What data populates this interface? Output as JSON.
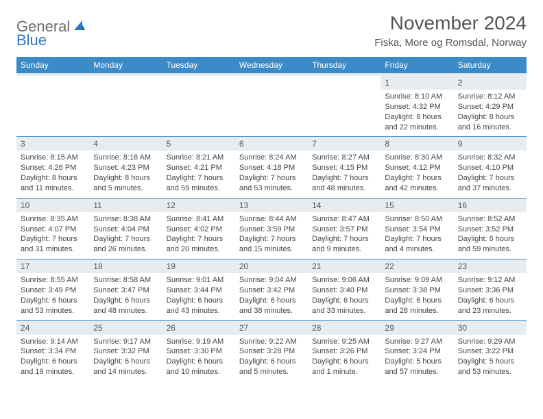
{
  "brand": {
    "general": "General",
    "blue": "Blue"
  },
  "title": "November 2024",
  "location": "Fiska, More og Romsdal, Norway",
  "colors": {
    "header_bg": "#3b8bc9",
    "header_text": "#ffffff",
    "daynum_bg": "#e9ecef",
    "border": "#3b8bc9",
    "logo_gray": "#6b6b6b",
    "logo_blue": "#2b79c2"
  },
  "weekdays": [
    "Sunday",
    "Monday",
    "Tuesday",
    "Wednesday",
    "Thursday",
    "Friday",
    "Saturday"
  ],
  "weeks": [
    [
      null,
      null,
      null,
      null,
      null,
      {
        "n": "1",
        "sr": "8:10 AM",
        "ss": "4:32 PM",
        "dl": "8 hours and 22 minutes."
      },
      {
        "n": "2",
        "sr": "8:12 AM",
        "ss": "4:29 PM",
        "dl": "8 hours and 16 minutes."
      }
    ],
    [
      {
        "n": "3",
        "sr": "8:15 AM",
        "ss": "4:26 PM",
        "dl": "8 hours and 11 minutes."
      },
      {
        "n": "4",
        "sr": "8:18 AM",
        "ss": "4:23 PM",
        "dl": "8 hours and 5 minutes."
      },
      {
        "n": "5",
        "sr": "8:21 AM",
        "ss": "4:21 PM",
        "dl": "7 hours and 59 minutes."
      },
      {
        "n": "6",
        "sr": "8:24 AM",
        "ss": "4:18 PM",
        "dl": "7 hours and 53 minutes."
      },
      {
        "n": "7",
        "sr": "8:27 AM",
        "ss": "4:15 PM",
        "dl": "7 hours and 48 minutes."
      },
      {
        "n": "8",
        "sr": "8:30 AM",
        "ss": "4:12 PM",
        "dl": "7 hours and 42 minutes."
      },
      {
        "n": "9",
        "sr": "8:32 AM",
        "ss": "4:10 PM",
        "dl": "7 hours and 37 minutes."
      }
    ],
    [
      {
        "n": "10",
        "sr": "8:35 AM",
        "ss": "4:07 PM",
        "dl": "7 hours and 31 minutes."
      },
      {
        "n": "11",
        "sr": "8:38 AM",
        "ss": "4:04 PM",
        "dl": "7 hours and 26 minutes."
      },
      {
        "n": "12",
        "sr": "8:41 AM",
        "ss": "4:02 PM",
        "dl": "7 hours and 20 minutes."
      },
      {
        "n": "13",
        "sr": "8:44 AM",
        "ss": "3:59 PM",
        "dl": "7 hours and 15 minutes."
      },
      {
        "n": "14",
        "sr": "8:47 AM",
        "ss": "3:57 PM",
        "dl": "7 hours and 9 minutes."
      },
      {
        "n": "15",
        "sr": "8:50 AM",
        "ss": "3:54 PM",
        "dl": "7 hours and 4 minutes."
      },
      {
        "n": "16",
        "sr": "8:52 AM",
        "ss": "3:52 PM",
        "dl": "6 hours and 59 minutes."
      }
    ],
    [
      {
        "n": "17",
        "sr": "8:55 AM",
        "ss": "3:49 PM",
        "dl": "6 hours and 53 minutes."
      },
      {
        "n": "18",
        "sr": "8:58 AM",
        "ss": "3:47 PM",
        "dl": "6 hours and 48 minutes."
      },
      {
        "n": "19",
        "sr": "9:01 AM",
        "ss": "3:44 PM",
        "dl": "6 hours and 43 minutes."
      },
      {
        "n": "20",
        "sr": "9:04 AM",
        "ss": "3:42 PM",
        "dl": "6 hours and 38 minutes."
      },
      {
        "n": "21",
        "sr": "9:06 AM",
        "ss": "3:40 PM",
        "dl": "6 hours and 33 minutes."
      },
      {
        "n": "22",
        "sr": "9:09 AM",
        "ss": "3:38 PM",
        "dl": "6 hours and 28 minutes."
      },
      {
        "n": "23",
        "sr": "9:12 AM",
        "ss": "3:36 PM",
        "dl": "6 hours and 23 minutes."
      }
    ],
    [
      {
        "n": "24",
        "sr": "9:14 AM",
        "ss": "3:34 PM",
        "dl": "6 hours and 19 minutes."
      },
      {
        "n": "25",
        "sr": "9:17 AM",
        "ss": "3:32 PM",
        "dl": "6 hours and 14 minutes."
      },
      {
        "n": "26",
        "sr": "9:19 AM",
        "ss": "3:30 PM",
        "dl": "6 hours and 10 minutes."
      },
      {
        "n": "27",
        "sr": "9:22 AM",
        "ss": "3:28 PM",
        "dl": "6 hours and 5 minutes."
      },
      {
        "n": "28",
        "sr": "9:25 AM",
        "ss": "3:26 PM",
        "dl": "6 hours and 1 minute."
      },
      {
        "n": "29",
        "sr": "9:27 AM",
        "ss": "3:24 PM",
        "dl": "5 hours and 57 minutes."
      },
      {
        "n": "30",
        "sr": "9:29 AM",
        "ss": "3:22 PM",
        "dl": "5 hours and 53 minutes."
      }
    ]
  ],
  "labels": {
    "sunrise": "Sunrise:",
    "sunset": "Sunset:",
    "daylight": "Daylight:"
  }
}
